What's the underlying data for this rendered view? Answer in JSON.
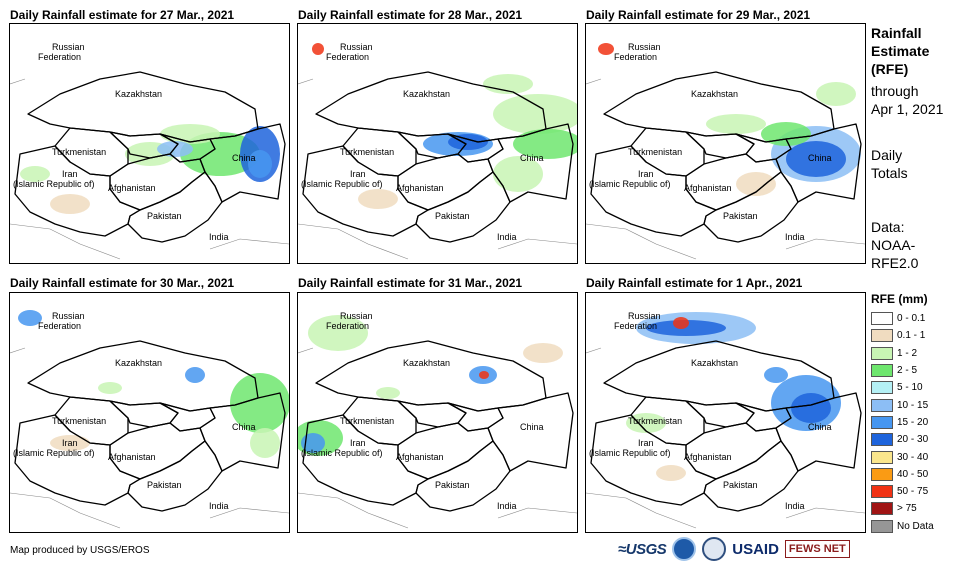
{
  "panels": [
    {
      "title": "Daily Rainfall estimate for 27 Mar., 2021"
    },
    {
      "title": "Daily Rainfall estimate for 28 Mar., 2021"
    },
    {
      "title": "Daily Rainfall estimate for 29 Mar., 2021"
    },
    {
      "title": "Daily Rainfall estimate for 30 Mar., 2021"
    },
    {
      "title": "Daily Rainfall estimate for 31 Mar., 2021"
    },
    {
      "title": "Daily Rainfall estimate for 1 Apr., 2021"
    }
  ],
  "countries": {
    "russia": "Russian",
    "russia2": "Federation",
    "kazakhstan": "Kazakhstan",
    "turkmenistan": "Turkmenistan",
    "iran": "Iran",
    "iran2": "(Islamic Republic of)",
    "afghanistan": "Afghanistan",
    "pakistan": "Pakistan",
    "china": "China",
    "india": "India"
  },
  "side": {
    "line1": "Rainfall",
    "line2": "Estimate",
    "line3": "(RFE)",
    "line4": "through",
    "line5": "Apr 1, 2021",
    "line6": "Daily",
    "line7": "Totals",
    "line8": "Data:",
    "line9": "NOAA-",
    "line10": "RFE2.0"
  },
  "legend": {
    "title": "RFE (mm)",
    "items": [
      {
        "label": "0 - 0.1",
        "color": "#ffffff"
      },
      {
        "label": "0.1 - 1",
        "color": "#f0dcc0"
      },
      {
        "label": "1 - 2",
        "color": "#c8f5b4"
      },
      {
        "label": "2 - 5",
        "color": "#6ee66e"
      },
      {
        "label": "5 - 10",
        "color": "#b4f0f5"
      },
      {
        "label": "10 - 15",
        "color": "#8cbef5"
      },
      {
        "label": "15 - 20",
        "color": "#4696f0"
      },
      {
        "label": "20 - 30",
        "color": "#1e64dc"
      },
      {
        "label": "30 - 40",
        "color": "#fae68c"
      },
      {
        "label": "40 - 50",
        "color": "#fa9b14"
      },
      {
        "label": "50 - 75",
        "color": "#f03214"
      },
      {
        "label": "> 75",
        "color": "#a01414"
      },
      {
        "label": "No Data",
        "color": "#969696"
      }
    ]
  },
  "credit": "Map produced by USGS/EROS",
  "logos": {
    "usgs": "≈USGS",
    "usaid": "USAID",
    "fews": "FEWS NET"
  }
}
